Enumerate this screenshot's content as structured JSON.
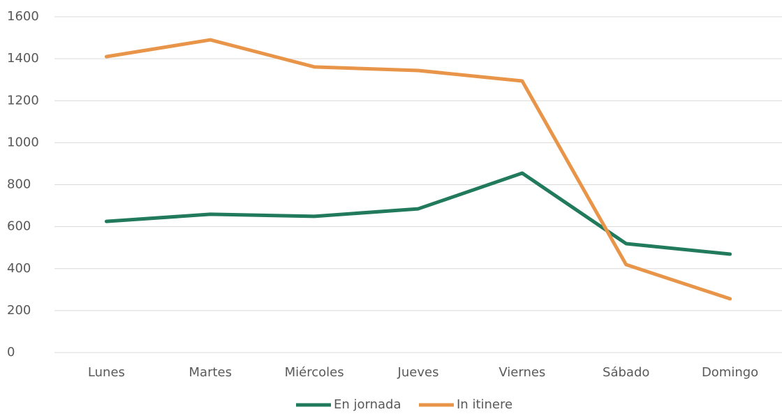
{
  "chart_data": {
    "type": "line",
    "categories": [
      "Lunes",
      "Martes",
      "Miércoles",
      "Jueves",
      "Viernes",
      "Sábado",
      "Domingo"
    ],
    "series": [
      {
        "name": "En jornada",
        "color": "#217a5c",
        "values": [
          625,
          659,
          649,
          685,
          855,
          519,
          469
        ]
      },
      {
        "name": "In itinere",
        "color": "#e8954a",
        "values": [
          1410,
          1490,
          1361,
          1344,
          1294,
          419,
          256
        ]
      }
    ],
    "ylim": [
      0,
      1600
    ],
    "yticks": [
      0,
      200,
      400,
      600,
      800,
      1000,
      1200,
      1400,
      1600
    ],
    "grid": true,
    "legend": "bottom"
  }
}
